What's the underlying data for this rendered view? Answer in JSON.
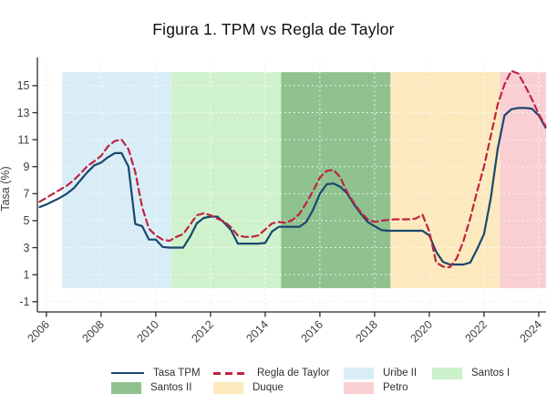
{
  "title": "Figura 1. TPM vs Regla de Taylor",
  "chart_data": {
    "type": "line",
    "title": "Figura 1. TPM vs Regla de Taylor",
    "xlabel": "",
    "ylabel": "Tasa (%)",
    "grid": true,
    "legend_position": "bottom",
    "xlim": [
      2005.67,
      2024.27
    ],
    "ylim": [
      -1.76,
      17.09
    ],
    "x_ticks": [
      2006,
      2008,
      2010,
      2012,
      2014,
      2016,
      2018,
      2020,
      2022,
      2024
    ],
    "y_ticks": [
      -1,
      1,
      3,
      5,
      7,
      9,
      11,
      13,
      15
    ],
    "x": [
      2005.75,
      2006,
      2006.25,
      2006.5,
      2006.75,
      2007,
      2007.25,
      2007.5,
      2007.75,
      2008,
      2008.25,
      2008.5,
      2008.75,
      2009,
      2009.25,
      2009.5,
      2009.75,
      2010,
      2010.25,
      2010.5,
      2010.75,
      2011,
      2011.25,
      2011.5,
      2011.75,
      2012,
      2012.25,
      2012.5,
      2012.75,
      2013,
      2013.25,
      2013.5,
      2013.75,
      2014,
      2014.25,
      2014.5,
      2014.75,
      2015,
      2015.25,
      2015.5,
      2015.75,
      2016,
      2016.25,
      2016.5,
      2016.75,
      2017,
      2017.25,
      2017.5,
      2017.75,
      2018,
      2018.25,
      2018.5,
      2018.75,
      2019,
      2019.25,
      2019.5,
      2019.75,
      2020,
      2020.25,
      2020.5,
      2020.75,
      2021,
      2021.25,
      2021.5,
      2021.75,
      2022,
      2022.25,
      2022.5,
      2022.75,
      2023,
      2023.25,
      2023.5,
      2023.75,
      2024,
      2024.25
    ],
    "series": [
      {
        "name": "Tasa TPM",
        "color": "#1a476f",
        "line_style": "solid",
        "values": [
          6,
          6.2,
          6.45,
          6.7,
          7,
          7.4,
          8,
          8.6,
          9.1,
          9.3,
          9.7,
          10,
          10,
          9,
          4.75,
          4.6,
          3.6,
          3.6,
          3.05,
          3,
          3,
          3,
          3.8,
          4.8,
          5.2,
          5.3,
          5.3,
          4.85,
          4.3,
          3.3,
          3.3,
          3.3,
          3.3,
          3.35,
          4.2,
          4.55,
          4.55,
          4.55,
          4.55,
          4.9,
          5.8,
          7,
          7.7,
          7.75,
          7.5,
          7,
          6.2,
          5.5,
          4.9,
          4.6,
          4.3,
          4.25,
          4.25,
          4.25,
          4.25,
          4.25,
          4.25,
          3.9,
          2.7,
          1.95,
          1.75,
          1.75,
          1.75,
          1.9,
          2.9,
          4,
          6.7,
          10.3,
          12.8,
          13.25,
          13.35,
          13.35,
          13.3,
          12.8,
          11.9
        ]
      },
      {
        "name": "Regla de Taylor",
        "color": "#bf2440",
        "line_style": "dashed",
        "values": [
          6.4,
          6.7,
          7,
          7.3,
          7.6,
          8,
          8.5,
          9.05,
          9.4,
          9.8,
          10.5,
          10.9,
          11,
          10.3,
          8.6,
          6,
          4.4,
          3.9,
          3.6,
          3.5,
          3.8,
          4,
          4.7,
          5.4,
          5.55,
          5.4,
          5.15,
          4.95,
          4.5,
          3.9,
          3.8,
          3.8,
          3.9,
          4.35,
          4.8,
          4.9,
          4.85,
          5.05,
          5.5,
          6.3,
          7.2,
          8.2,
          8.7,
          8.75,
          8.2,
          7.1,
          6.3,
          5.6,
          5.1,
          4.9,
          5,
          5.05,
          5.1,
          5.1,
          5.1,
          5.15,
          5.45,
          4.2,
          1.9,
          1.6,
          1.55,
          2.2,
          3.5,
          5.2,
          7.2,
          9,
          11.3,
          13.6,
          15.1,
          16.1,
          15.9,
          15,
          14,
          12.9,
          12
        ]
      }
    ],
    "regions": [
      {
        "name": "Uribe II",
        "color": "#d9edf7",
        "x_from": 2006.58,
        "x_to": 2010.58,
        "y_from": 0,
        "y_to": 16
      },
      {
        "name": "Santos I",
        "color": "#cff2cc",
        "x_from": 2010.58,
        "x_to": 2014.58,
        "y_from": 0,
        "y_to": 16
      },
      {
        "name": "Santos II",
        "color": "#8fc28f",
        "x_from": 2014.58,
        "x_to": 2018.58,
        "y_from": 0,
        "y_to": 16
      },
      {
        "name": "Duque",
        "color": "#fce9bd",
        "x_from": 2018.58,
        "x_to": 2022.58,
        "y_from": 0,
        "y_to": 16
      },
      {
        "name": "Petro",
        "color": "#f9cfd4",
        "x_from": 2022.58,
        "x_to": 2024.27,
        "y_from": 0,
        "y_to": 16
      }
    ],
    "legend": {
      "rows": [
        [
          {
            "swatch": "line",
            "color": "#1a476f",
            "label": "Tasa TPM"
          },
          {
            "swatch": "dashed-line",
            "color": "#bf2440",
            "label": "Regla de Taylor"
          },
          {
            "swatch": "rect",
            "color": "#d9edf7",
            "label": "Uribe II"
          },
          {
            "swatch": "rect",
            "color": "#ccf2cc",
            "label": "Santos I"
          }
        ],
        [
          {
            "swatch": "rect",
            "color": "#8fc28f",
            "label": "Santos II"
          },
          {
            "swatch": "rect",
            "color": "#fce9bd",
            "label": "Duque"
          },
          {
            "swatch": "rect",
            "color": "#f9cfd4",
            "label": "Petro"
          }
        ]
      ]
    }
  }
}
